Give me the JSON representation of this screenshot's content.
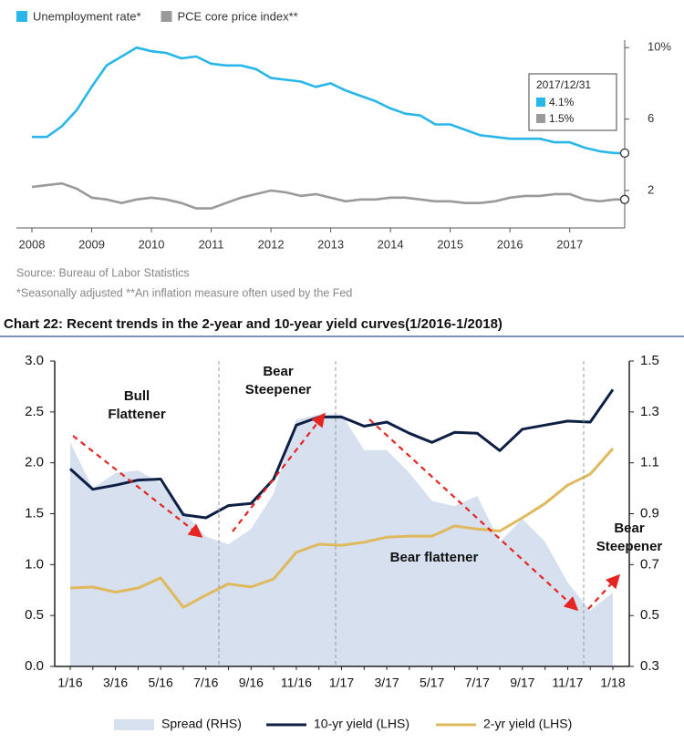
{
  "chart_data": [
    {
      "type": "line",
      "series": [
        {
          "name": "Unemployment rate*",
          "color": "#29b6e8",
          "values": [
            5.0,
            5.0,
            5.6,
            6.5,
            7.8,
            9.0,
            9.5,
            10.0,
            9.8,
            9.7,
            9.4,
            9.5,
            9.1,
            9.0,
            9.0,
            8.8,
            8.3,
            8.2,
            8.1,
            7.8,
            8.0,
            7.6,
            7.3,
            7.0,
            6.6,
            6.3,
            6.2,
            5.7,
            5.7,
            5.4,
            5.1,
            5.0,
            4.9,
            4.9,
            4.9,
            4.7,
            4.7,
            4.4,
            4.2,
            4.1,
            4.1
          ]
        },
        {
          "name": "PCE core price index**",
          "color": "#9a9a9a",
          "values": [
            2.2,
            2.3,
            2.4,
            2.1,
            1.6,
            1.5,
            1.3,
            1.5,
            1.6,
            1.5,
            1.3,
            1.0,
            1.0,
            1.3,
            1.6,
            1.8,
            2.0,
            1.9,
            1.7,
            1.8,
            1.6,
            1.4,
            1.5,
            1.5,
            1.6,
            1.6,
            1.5,
            1.4,
            1.4,
            1.3,
            1.3,
            1.4,
            1.6,
            1.7,
            1.7,
            1.8,
            1.8,
            1.5,
            1.4,
            1.5,
            1.5
          ]
        }
      ],
      "x": [
        2008,
        2008.25,
        2008.5,
        2008.75,
        2009,
        2009.25,
        2009.5,
        2009.75,
        2010,
        2010.25,
        2010.5,
        2010.75,
        2011,
        2011.25,
        2011.5,
        2011.75,
        2012,
        2012.25,
        2012.5,
        2012.75,
        2013,
        2013.25,
        2013.5,
        2013.75,
        2014,
        2014.25,
        2014.5,
        2014.75,
        2015,
        2015.25,
        2015.5,
        2015.75,
        2016,
        2016.25,
        2016.5,
        2016.75,
        2017,
        2017.25,
        2017.5,
        2017.75,
        2017.92
      ],
      "xlim": [
        2008,
        2017.92
      ],
      "xticks": [
        2008,
        2009,
        2010,
        2011,
        2012,
        2013,
        2014,
        2015,
        2016,
        2017
      ],
      "ylim": [
        0,
        10.4
      ],
      "yticks": [
        2,
        6,
        {
          "value": 10,
          "label": "10%"
        }
      ],
      "y_axis_side": "right",
      "tooltip": {
        "date": "2017/12/31",
        "values": [
          4.1,
          1.5
        ],
        "value_labels": [
          "4.1%",
          "1.5%"
        ]
      },
      "source": "Source: Bureau of Labor Statistics",
      "note": "*Seasonally adjusted **An inflation measure often used by the Fed"
    },
    {
      "type": "line",
      "title": "Chart 22: Recent trends in the 2-year and 10-year yield curves(1/2016-1/2018)",
      "categories": [
        "1/16",
        null,
        "3/16",
        null,
        "5/16",
        null,
        "7/16",
        null,
        "9/16",
        null,
        "11/16",
        null,
        "1/17",
        null,
        "3/17",
        null,
        "5/17",
        null,
        "7/17",
        null,
        "9/17",
        null,
        "11/17",
        null,
        "1/18"
      ],
      "series": [
        {
          "name": "Spread (RHS)",
          "color": "#d6e0ef",
          "style": "area",
          "axis": "y2",
          "values": [
            1.18,
            1.0,
            1.06,
            1.07,
            1.02,
            0.91,
            0.81,
            0.78,
            0.84,
            0.98,
            1.27,
            1.29,
            1.29,
            1.15,
            1.15,
            1.06,
            0.95,
            0.93,
            0.97,
            0.79,
            0.88,
            0.79,
            0.63,
            0.52,
            0.59
          ]
        },
        {
          "name": "10-yr yield (LHS)",
          "color": "#0e1f45",
          "values": [
            1.94,
            1.74,
            1.78,
            1.83,
            1.84,
            1.49,
            1.46,
            1.58,
            1.6,
            1.84,
            2.37,
            2.45,
            2.45,
            2.36,
            2.4,
            2.29,
            2.2,
            2.3,
            2.29,
            2.12,
            2.33,
            2.37,
            2.41,
            2.4,
            2.72
          ]
        },
        {
          "name": "2-yr yield (LHS)",
          "color": "#e0b95c",
          "values": [
            0.77,
            0.78,
            0.73,
            0.77,
            0.87,
            0.58,
            0.7,
            0.81,
            0.78,
            0.86,
            1.12,
            1.2,
            1.19,
            1.22,
            1.27,
            1.28,
            1.28,
            1.38,
            1.35,
            1.33,
            1.46,
            1.6,
            1.78,
            1.89,
            2.14
          ]
        }
      ],
      "ylim": [
        0,
        3
      ],
      "yticks": [
        {
          "value": 0,
          "label": "0.0"
        },
        0.5,
        {
          "value": 1,
          "label": "1.0"
        },
        1.5,
        {
          "value": 2,
          "label": "2.0"
        },
        2.5,
        {
          "value": 3,
          "label": "3.0"
        }
      ],
      "y2lim": [
        0.3,
        1.5
      ],
      "y2ticks": [
        0.3,
        0.5,
        0.7,
        0.9,
        1.1,
        1.3,
        1.5
      ],
      "annotations": [
        {
          "lines": [
            "Bull",
            "Flattener"
          ]
        },
        {
          "lines": [
            "Bear",
            "Steepener"
          ]
        },
        {
          "lines": [
            "Bear flattener"
          ]
        },
        {
          "lines": [
            "Bear",
            "Steepener"
          ]
        }
      ]
    }
  ]
}
